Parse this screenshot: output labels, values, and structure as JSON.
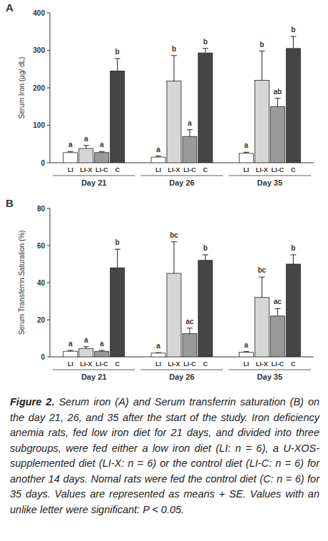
{
  "chart_data": [
    {
      "type": "bar",
      "title": "A",
      "y_label": "Serum Iron (μg/ dL)",
      "categories": [
        "Day 21",
        "Day 26",
        "Day 35"
      ],
      "series": [
        {
          "name": "LI",
          "color": "#ffffff",
          "values": [
            27,
            15,
            25
          ],
          "errors": [
            3,
            3,
            3
          ],
          "letters": [
            "a",
            "a",
            "a"
          ]
        },
        {
          "name": "LI-X",
          "color": "#d6d6d6",
          "values": [
            38,
            218,
            220
          ],
          "errors": [
            8,
            68,
            78
          ],
          "letters": [
            "a",
            "b",
            "b"
          ]
        },
        {
          "name": "LI-C",
          "color": "#9a9a9a",
          "values": [
            27,
            70,
            150
          ],
          "errors": [
            3,
            18,
            22
          ],
          "letters": [
            "a",
            "a",
            "ab"
          ]
        },
        {
          "name": "C",
          "color": "#454545",
          "values": [
            245,
            293,
            305
          ],
          "errors": [
            33,
            12,
            32
          ],
          "letters": [
            "b",
            "b",
            "b"
          ]
        }
      ],
      "ylim": [
        0,
        400
      ],
      "yticks": [
        0,
        100,
        200,
        300,
        400
      ]
    },
    {
      "type": "bar",
      "title": "B",
      "y_label": "Serum Transferrin Saturation (%)",
      "categories": [
        "Day 21",
        "Day 26",
        "Day 35"
      ],
      "series": [
        {
          "name": "LI",
          "color": "#ffffff",
          "values": [
            3,
            2,
            2.5
          ],
          "errors": [
            0.5,
            0.3,
            0.3
          ],
          "letters": [
            "a",
            "a",
            "a"
          ]
        },
        {
          "name": "LI-X",
          "color": "#d6d6d6",
          "values": [
            4.5,
            45,
            32
          ],
          "errors": [
            1,
            17,
            11
          ],
          "letters": [
            "a",
            "bc",
            "bc"
          ]
        },
        {
          "name": "LI-C",
          "color": "#9a9a9a",
          "values": [
            3,
            12.5,
            22
          ],
          "errors": [
            0.5,
            3,
            4
          ],
          "letters": [
            "a",
            "ac",
            "ac"
          ]
        },
        {
          "name": "C",
          "color": "#454545",
          "values": [
            48,
            52,
            50
          ],
          "errors": [
            10,
            3,
            5
          ],
          "letters": [
            "b",
            "b",
            "b"
          ]
        }
      ],
      "ylim": [
        0,
        80
      ],
      "yticks": [
        0,
        20,
        40,
        60,
        80
      ]
    }
  ],
  "caption": {
    "label": "Figure 2.",
    "text": "Serum iron (A) and Serum transferrin saturation (B) on the day 21, 26, and 35 after the start of the study. Iron deficiency anemia rats, fed low iron diet for 21 days, and divided into three subgroups, were fed either a low iron diet (LI: n = 6), a U-XOS-supplemented diet (LI-X: n = 6) or the control diet (LI-C: n = 6) for another 14 days. Nomal rats were fed the control diet (C: n = 6) for 35 days. Values are represented as means + SE. Values with an unlike letter were significant: P < 0.05."
  }
}
